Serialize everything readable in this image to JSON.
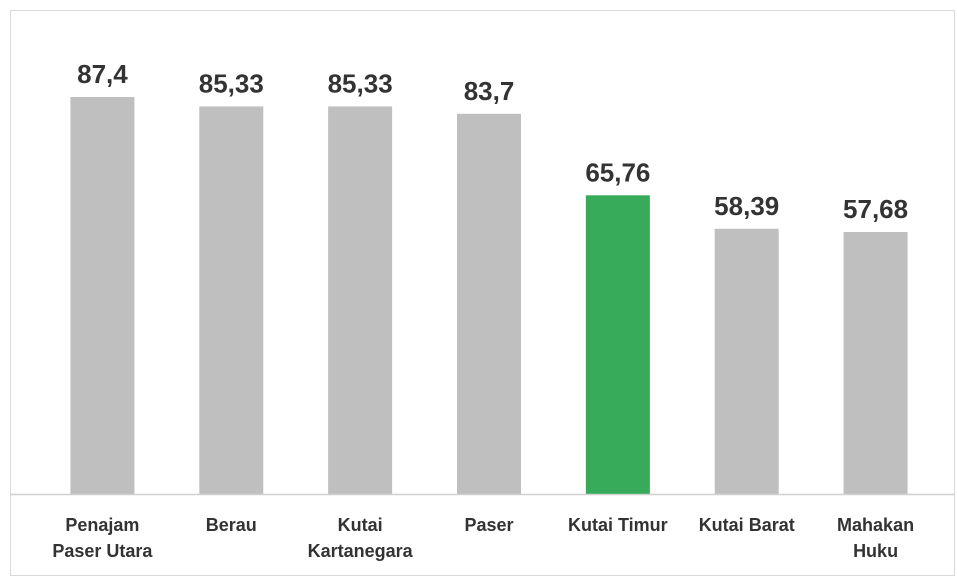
{
  "chart_data": {
    "type": "bar",
    "categories": [
      "Penajam Paser Utara",
      "Berau",
      "Kutai Kartanegara",
      "Paser",
      "Kutai Timur",
      "Kutai Barat",
      "Mahakan Huku"
    ],
    "values": [
      87.4,
      85.33,
      85.33,
      83.7,
      65.76,
      58.39,
      57.68
    ],
    "value_labels": [
      "87,4",
      "85,33",
      "85,33",
      "83,7",
      "65,76",
      "58,39",
      "57,68"
    ],
    "colors": [
      "#bfbfbf",
      "#bfbfbf",
      "#bfbfbf",
      "#bfbfbf",
      "#37ab5a",
      "#bfbfbf",
      "#bfbfbf"
    ]
  }
}
